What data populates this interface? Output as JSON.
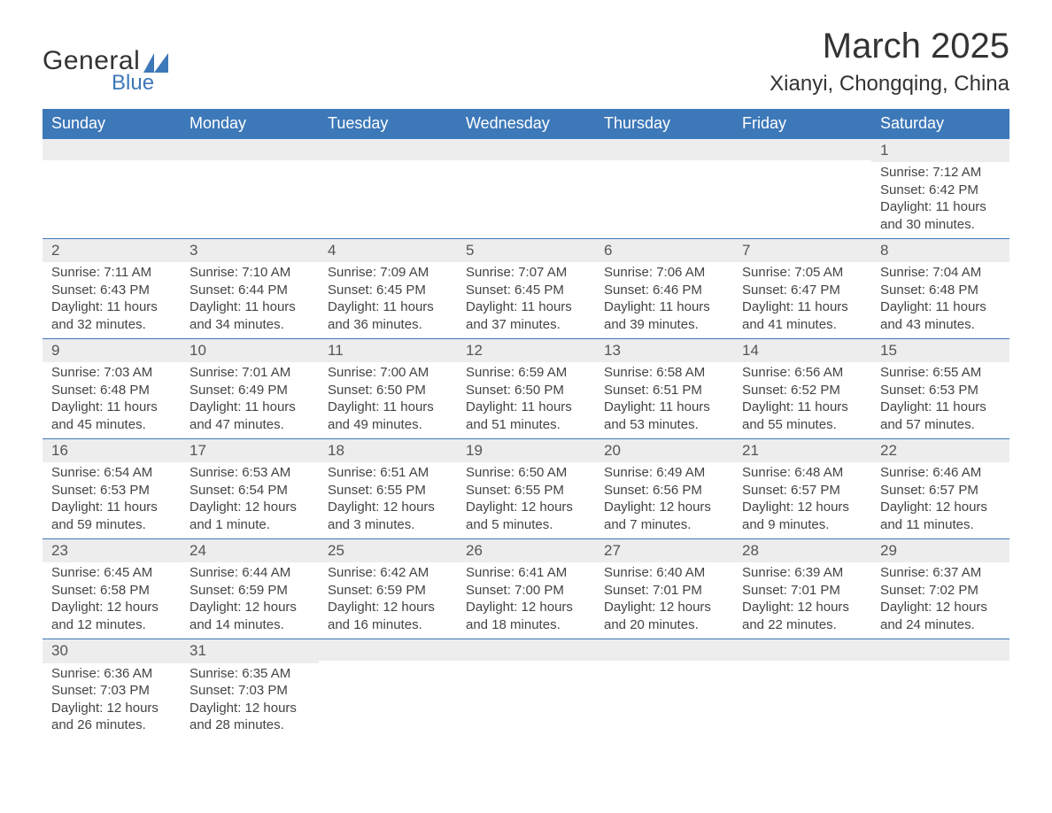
{
  "logo": {
    "text1": "General",
    "text2": "Blue",
    "arrow_color": "#3d78b8"
  },
  "title": "March 2025",
  "location": "Xianyi, Chongqing, China",
  "colors": {
    "header_bg": "#3d78b8",
    "header_text": "#ffffff",
    "daynum_bg": "#ededed",
    "row_border": "#3d78b8",
    "text": "#333333"
  },
  "day_headers": [
    "Sunday",
    "Monday",
    "Tuesday",
    "Wednesday",
    "Thursday",
    "Friday",
    "Saturday"
  ],
  "weeks": [
    [
      {
        "empty": true
      },
      {
        "empty": true
      },
      {
        "empty": true
      },
      {
        "empty": true
      },
      {
        "empty": true
      },
      {
        "empty": true
      },
      {
        "num": "1",
        "sunrise": "Sunrise: 7:12 AM",
        "sunset": "Sunset: 6:42 PM",
        "daylight": "Daylight: 11 hours and 30 minutes."
      }
    ],
    [
      {
        "num": "2",
        "sunrise": "Sunrise: 7:11 AM",
        "sunset": "Sunset: 6:43 PM",
        "daylight": "Daylight: 11 hours and 32 minutes."
      },
      {
        "num": "3",
        "sunrise": "Sunrise: 7:10 AM",
        "sunset": "Sunset: 6:44 PM",
        "daylight": "Daylight: 11 hours and 34 minutes."
      },
      {
        "num": "4",
        "sunrise": "Sunrise: 7:09 AM",
        "sunset": "Sunset: 6:45 PM",
        "daylight": "Daylight: 11 hours and 36 minutes."
      },
      {
        "num": "5",
        "sunrise": "Sunrise: 7:07 AM",
        "sunset": "Sunset: 6:45 PM",
        "daylight": "Daylight: 11 hours and 37 minutes."
      },
      {
        "num": "6",
        "sunrise": "Sunrise: 7:06 AM",
        "sunset": "Sunset: 6:46 PM",
        "daylight": "Daylight: 11 hours and 39 minutes."
      },
      {
        "num": "7",
        "sunrise": "Sunrise: 7:05 AM",
        "sunset": "Sunset: 6:47 PM",
        "daylight": "Daylight: 11 hours and 41 minutes."
      },
      {
        "num": "8",
        "sunrise": "Sunrise: 7:04 AM",
        "sunset": "Sunset: 6:48 PM",
        "daylight": "Daylight: 11 hours and 43 minutes."
      }
    ],
    [
      {
        "num": "9",
        "sunrise": "Sunrise: 7:03 AM",
        "sunset": "Sunset: 6:48 PM",
        "daylight": "Daylight: 11 hours and 45 minutes."
      },
      {
        "num": "10",
        "sunrise": "Sunrise: 7:01 AM",
        "sunset": "Sunset: 6:49 PM",
        "daylight": "Daylight: 11 hours and 47 minutes."
      },
      {
        "num": "11",
        "sunrise": "Sunrise: 7:00 AM",
        "sunset": "Sunset: 6:50 PM",
        "daylight": "Daylight: 11 hours and 49 minutes."
      },
      {
        "num": "12",
        "sunrise": "Sunrise: 6:59 AM",
        "sunset": "Sunset: 6:50 PM",
        "daylight": "Daylight: 11 hours and 51 minutes."
      },
      {
        "num": "13",
        "sunrise": "Sunrise: 6:58 AM",
        "sunset": "Sunset: 6:51 PM",
        "daylight": "Daylight: 11 hours and 53 minutes."
      },
      {
        "num": "14",
        "sunrise": "Sunrise: 6:56 AM",
        "sunset": "Sunset: 6:52 PM",
        "daylight": "Daylight: 11 hours and 55 minutes."
      },
      {
        "num": "15",
        "sunrise": "Sunrise: 6:55 AM",
        "sunset": "Sunset: 6:53 PM",
        "daylight": "Daylight: 11 hours and 57 minutes."
      }
    ],
    [
      {
        "num": "16",
        "sunrise": "Sunrise: 6:54 AM",
        "sunset": "Sunset: 6:53 PM",
        "daylight": "Daylight: 11 hours and 59 minutes."
      },
      {
        "num": "17",
        "sunrise": "Sunrise: 6:53 AM",
        "sunset": "Sunset: 6:54 PM",
        "daylight": "Daylight: 12 hours and 1 minute."
      },
      {
        "num": "18",
        "sunrise": "Sunrise: 6:51 AM",
        "sunset": "Sunset: 6:55 PM",
        "daylight": "Daylight: 12 hours and 3 minutes."
      },
      {
        "num": "19",
        "sunrise": "Sunrise: 6:50 AM",
        "sunset": "Sunset: 6:55 PM",
        "daylight": "Daylight: 12 hours and 5 minutes."
      },
      {
        "num": "20",
        "sunrise": "Sunrise: 6:49 AM",
        "sunset": "Sunset: 6:56 PM",
        "daylight": "Daylight: 12 hours and 7 minutes."
      },
      {
        "num": "21",
        "sunrise": "Sunrise: 6:48 AM",
        "sunset": "Sunset: 6:57 PM",
        "daylight": "Daylight: 12 hours and 9 minutes."
      },
      {
        "num": "22",
        "sunrise": "Sunrise: 6:46 AM",
        "sunset": "Sunset: 6:57 PM",
        "daylight": "Daylight: 12 hours and 11 minutes."
      }
    ],
    [
      {
        "num": "23",
        "sunrise": "Sunrise: 6:45 AM",
        "sunset": "Sunset: 6:58 PM",
        "daylight": "Daylight: 12 hours and 12 minutes."
      },
      {
        "num": "24",
        "sunrise": "Sunrise: 6:44 AM",
        "sunset": "Sunset: 6:59 PM",
        "daylight": "Daylight: 12 hours and 14 minutes."
      },
      {
        "num": "25",
        "sunrise": "Sunrise: 6:42 AM",
        "sunset": "Sunset: 6:59 PM",
        "daylight": "Daylight: 12 hours and 16 minutes."
      },
      {
        "num": "26",
        "sunrise": "Sunrise: 6:41 AM",
        "sunset": "Sunset: 7:00 PM",
        "daylight": "Daylight: 12 hours and 18 minutes."
      },
      {
        "num": "27",
        "sunrise": "Sunrise: 6:40 AM",
        "sunset": "Sunset: 7:01 PM",
        "daylight": "Daylight: 12 hours and 20 minutes."
      },
      {
        "num": "28",
        "sunrise": "Sunrise: 6:39 AM",
        "sunset": "Sunset: 7:01 PM",
        "daylight": "Daylight: 12 hours and 22 minutes."
      },
      {
        "num": "29",
        "sunrise": "Sunrise: 6:37 AM",
        "sunset": "Sunset: 7:02 PM",
        "daylight": "Daylight: 12 hours and 24 minutes."
      }
    ],
    [
      {
        "num": "30",
        "sunrise": "Sunrise: 6:36 AM",
        "sunset": "Sunset: 7:03 PM",
        "daylight": "Daylight: 12 hours and 26 minutes."
      },
      {
        "num": "31",
        "sunrise": "Sunrise: 6:35 AM",
        "sunset": "Sunset: 7:03 PM",
        "daylight": "Daylight: 12 hours and 28 minutes."
      },
      {
        "empty": true
      },
      {
        "empty": true
      },
      {
        "empty": true
      },
      {
        "empty": true
      },
      {
        "empty": true
      }
    ]
  ]
}
